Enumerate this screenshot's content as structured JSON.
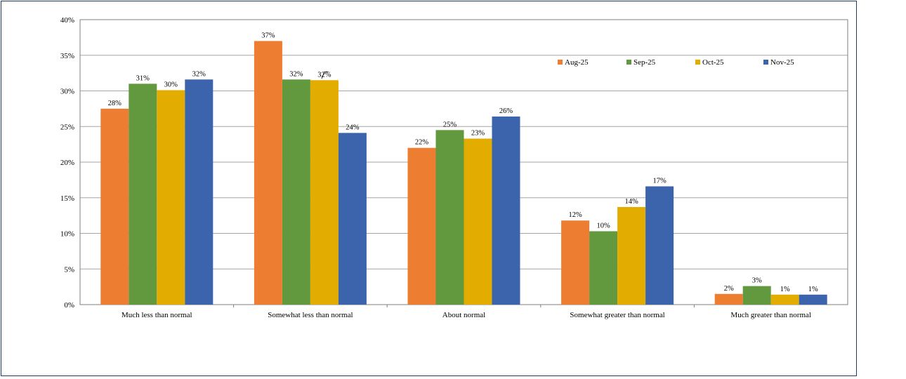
{
  "chart_data": {
    "type": "bar",
    "title": "",
    "xlabel": "",
    "ylabel": "",
    "ylim": [
      0,
      40
    ],
    "yticks": [
      0,
      5,
      10,
      15,
      20,
      25,
      30,
      35,
      40
    ],
    "ytick_labels": [
      "0%",
      "5%",
      "10%",
      "15%",
      "20%",
      "25%",
      "30%",
      "35%",
      "40%"
    ],
    "grid": true,
    "legend_position": "top-right",
    "categories": [
      "Much less than normal",
      "Somewhat less than normal",
      "About normal",
      "Somewhat greater than normal",
      "Much greater than normal"
    ],
    "series": [
      {
        "name": "Aug-25",
        "color": "#ed7d31",
        "values": [
          27.5,
          37.0,
          22.0,
          11.8,
          1.5
        ],
        "labels": [
          "28%",
          "37%",
          "22%",
          "12%",
          "2%"
        ]
      },
      {
        "name": "Sep-25",
        "color": "#62993e",
        "values": [
          31.0,
          31.6,
          24.5,
          10.3,
          2.6
        ],
        "labels": [
          "31%",
          "32%",
          "25%",
          "10%",
          "3%"
        ]
      },
      {
        "name": "Oct-25",
        "color": "#e2ac00",
        "values": [
          30.1,
          31.5,
          23.3,
          13.7,
          1.4
        ],
        "labels": [
          "30%",
          "32%",
          "23%",
          "14%",
          "1%"
        ]
      },
      {
        "name": "Nov-25",
        "color": "#3b64ad",
        "values": [
          31.6,
          24.1,
          26.4,
          16.6,
          1.4
        ],
        "labels": [
          "32%",
          "24%",
          "26%",
          "17%",
          "1%"
        ]
      }
    ]
  }
}
